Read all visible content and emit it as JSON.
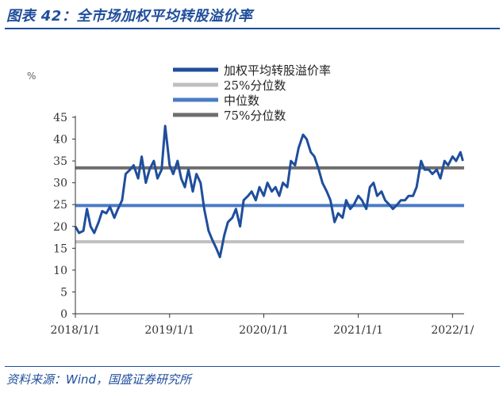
{
  "header": {
    "title": "图表 42：全市场加权平均转股溢价率"
  },
  "footer": {
    "source": "资料来源：Wind，国盛证券研究所"
  },
  "colors": {
    "series_main": "#1f4e9c",
    "p25": "#c0c0c0",
    "median": "#4a7cc4",
    "p75": "#6e6e6e",
    "axis": "#333333",
    "title": "#1f4e9c"
  },
  "chart_data": {
    "type": "line",
    "ylabel": "%",
    "ylim": [
      0,
      45
    ],
    "yticks": [
      0,
      5,
      10,
      15,
      20,
      25,
      30,
      35,
      40,
      45
    ],
    "xlim": [
      "2018-01-01",
      "2022-02-15"
    ],
    "xticks": [
      "2018/1/1",
      "2019/1/1",
      "2020/1/1",
      "2021/1/1",
      "2022/1/"
    ],
    "legend_position": "top",
    "series": [
      {
        "name": "加权平均转股溢价率",
        "kind": "line",
        "x": [
          "2018-01-01",
          "2018-01-15",
          "2018-02-01",
          "2018-02-15",
          "2018-03-01",
          "2018-03-15",
          "2018-04-01",
          "2018-04-15",
          "2018-05-01",
          "2018-05-15",
          "2018-06-01",
          "2018-06-15",
          "2018-07-01",
          "2018-07-15",
          "2018-08-01",
          "2018-08-15",
          "2018-09-01",
          "2018-09-15",
          "2018-10-01",
          "2018-10-15",
          "2018-11-01",
          "2018-11-15",
          "2018-12-01",
          "2018-12-15",
          "2019-01-01",
          "2019-01-15",
          "2019-02-01",
          "2019-02-15",
          "2019-03-01",
          "2019-03-15",
          "2019-04-01",
          "2019-04-15",
          "2019-05-01",
          "2019-05-15",
          "2019-06-01",
          "2019-06-15",
          "2019-07-01",
          "2019-07-15",
          "2019-08-01",
          "2019-08-15",
          "2019-09-01",
          "2019-09-15",
          "2019-10-01",
          "2019-10-15",
          "2019-11-01",
          "2019-11-15",
          "2019-12-01",
          "2019-12-15",
          "2020-01-01",
          "2020-01-15",
          "2020-02-01",
          "2020-02-15",
          "2020-03-01",
          "2020-03-15",
          "2020-04-01",
          "2020-04-15",
          "2020-05-01",
          "2020-05-15",
          "2020-06-01",
          "2020-06-15",
          "2020-07-01",
          "2020-07-15",
          "2020-08-01",
          "2020-08-15",
          "2020-09-01",
          "2020-09-15",
          "2020-10-01",
          "2020-10-15",
          "2020-11-01",
          "2020-11-15",
          "2020-12-01",
          "2020-12-15",
          "2021-01-01",
          "2021-01-15",
          "2021-02-01",
          "2021-02-15",
          "2021-03-01",
          "2021-03-15",
          "2021-04-01",
          "2021-04-15",
          "2021-05-01",
          "2021-05-15",
          "2021-06-01",
          "2021-06-15",
          "2021-07-01",
          "2021-07-15",
          "2021-08-01",
          "2021-08-15",
          "2021-09-01",
          "2021-09-15",
          "2021-10-01",
          "2021-10-15",
          "2021-11-01",
          "2021-11-15",
          "2021-12-01",
          "2021-12-15",
          "2022-01-01",
          "2022-01-15",
          "2022-02-01",
          "2022-02-10"
        ],
        "values": [
          20,
          18.5,
          19,
          24,
          20,
          18.5,
          21,
          23.5,
          23,
          24.5,
          22,
          24,
          26,
          32,
          33,
          34,
          31,
          36,
          30,
          33,
          35,
          31,
          33,
          43,
          34,
          32,
          35,
          31,
          29,
          33,
          28,
          32,
          30,
          24,
          19,
          17,
          15,
          13,
          18,
          21,
          22,
          24,
          20,
          26,
          27,
          28,
          26,
          29,
          27,
          30,
          28,
          29,
          27,
          30,
          29,
          35,
          34,
          38,
          41,
          40,
          37,
          36,
          33,
          30,
          28,
          26,
          21,
          23,
          22,
          26,
          24,
          25,
          27,
          26,
          24,
          29,
          30,
          27,
          28,
          26,
          25,
          24,
          25,
          26,
          26,
          27,
          27,
          29,
          35,
          33,
          33,
          32,
          33,
          31,
          35,
          34,
          36,
          35,
          37,
          35
        ]
      },
      {
        "name": "25%分位数",
        "kind": "hline",
        "value": 16.5
      },
      {
        "name": "中位数",
        "kind": "hline",
        "value": 24.8
      },
      {
        "name": "75%分位数",
        "kind": "hline",
        "value": 33.4
      }
    ]
  }
}
